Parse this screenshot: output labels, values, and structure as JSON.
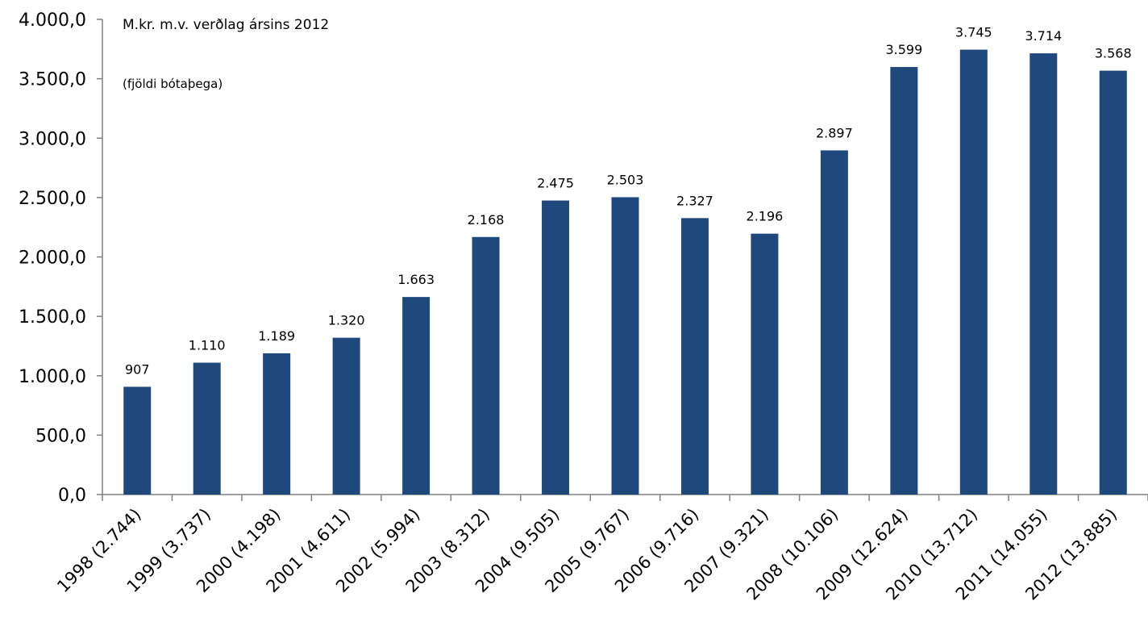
{
  "chart_data": {
    "type": "bar",
    "title": "",
    "xlabel": "",
    "ylabel": "",
    "annotations": [
      "M.kr. m.v. verðlag ársins 2012",
      "(fjöldi bótaþega)"
    ],
    "categories": [
      "1998 (2.744)",
      "1999 (3.737)",
      "2000 (4.198)",
      "2001 (4.611)",
      "2002 (5.994)",
      "2003 (8.312)",
      "2004 (9.505)",
      "2005 (9.767)",
      "2006 (9.716)",
      "2007 (9.321)",
      "2008 (10.106)",
      "2009 (12.624)",
      "2010 (13.712)",
      "2011 (14.055)",
      "2012 (13.885)"
    ],
    "values": [
      907,
      1110,
      1189,
      1320,
      1663,
      2168,
      2475,
      2503,
      2327,
      2196,
      2897,
      3599,
      3745,
      3714,
      3568
    ],
    "data_labels": [
      "907",
      "1.110",
      "1.189",
      "1.320",
      "1.663",
      "2.168",
      "2.475",
      "2.503",
      "2.327",
      "2.196",
      "2.897",
      "3.599",
      "3.745",
      "3.714",
      "3.568"
    ],
    "yticks": [
      "0,0",
      "500,0",
      "1.000,0",
      "1.500,0",
      "2.000,0",
      "2.500,0",
      "3.000,0",
      "3.500,0",
      "4.000,0"
    ],
    "ylim": [
      0,
      4000
    ],
    "grid": false,
    "legend": "none",
    "bar_color": "#1F497D",
    "axis_color": "#808080"
  }
}
